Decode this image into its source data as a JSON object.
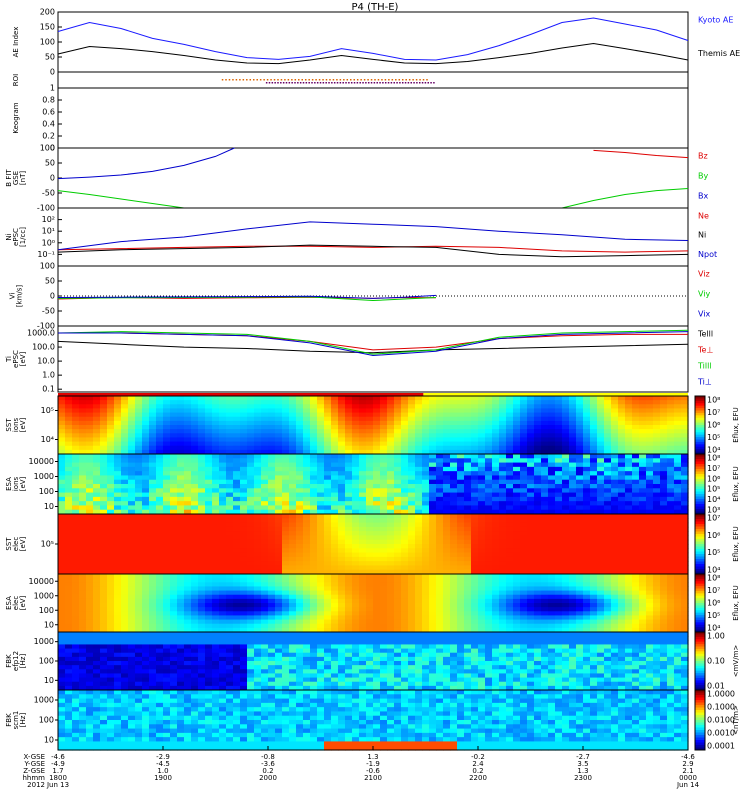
{
  "title": "P4 (TH-E)",
  "chart_data": [
    {
      "type": "line",
      "ylabel": "AE Index",
      "ylim": [
        0,
        200
      ],
      "yticks": [
        0,
        50,
        100,
        150,
        200
      ],
      "grid": false,
      "series": [
        {
          "name": "Kyoto AE",
          "color": "#1a1aff",
          "x": [
            0,
            0.05,
            0.1,
            0.15,
            0.2,
            0.25,
            0.3,
            0.35,
            0.4,
            0.45,
            0.5,
            0.55,
            0.6,
            0.65,
            0.7,
            0.75,
            0.8,
            0.85,
            0.9,
            0.95,
            1
          ],
          "values": [
            135,
            165,
            145,
            112,
            92,
            68,
            48,
            42,
            52,
            78,
            62,
            42,
            40,
            58,
            88,
            125,
            165,
            180,
            160,
            140,
            105
          ]
        },
        {
          "name": "Themis AE",
          "color": "#000000",
          "x": [
            0,
            0.05,
            0.1,
            0.15,
            0.2,
            0.25,
            0.3,
            0.35,
            0.4,
            0.45,
            0.5,
            0.55,
            0.6,
            0.65,
            0.7,
            0.75,
            0.8,
            0.85,
            0.9,
            0.95,
            1
          ],
          "values": [
            60,
            85,
            78,
            68,
            55,
            40,
            30,
            28,
            40,
            55,
            42,
            30,
            28,
            35,
            48,
            62,
            80,
            95,
            78,
            60,
            40
          ]
        }
      ]
    },
    {
      "type": "line",
      "ylabel": "ROI",
      "ylim": [
        0,
        1
      ]
    },
    {
      "type": "line",
      "ylabel": "Keogram",
      "ylim": [
        0,
        1
      ],
      "yticks": [
        0,
        0.2,
        0.4,
        0.6,
        0.8,
        1.0
      ]
    },
    {
      "type": "line",
      "ylabel": "B FIT\nGSE\n[nT]",
      "ylim": [
        -100,
        100
      ],
      "yticks": [
        -100,
        -50,
        0,
        50,
        100
      ],
      "series": [
        {
          "name": "Bz",
          "color": "#dd0000",
          "x": [
            0.85,
            0.9,
            0.95,
            1
          ],
          "values": [
            92,
            85,
            75,
            68
          ]
        },
        {
          "name": "By",
          "color": "#00cc00",
          "x": [
            0,
            0.05,
            0.1,
            0.15,
            0.2,
            0.8,
            0.85,
            0.9,
            0.95,
            1
          ],
          "values": [
            -42,
            -55,
            -70,
            -85,
            -100,
            -100,
            -75,
            -55,
            -42,
            -35
          ]
        },
        {
          "name": "Bx",
          "color": "#0000cc",
          "x": [
            0,
            0.05,
            0.1,
            0.15,
            0.2,
            0.25,
            0.28
          ],
          "values": [
            -2,
            3,
            10,
            22,
            42,
            72,
            100
          ]
        }
      ]
    },
    {
      "type": "line",
      "ylabel": "Ni\nePSC\n[1/cc]",
      "ylim": [
        -2,
        3
      ],
      "yticks": [
        -1,
        0,
        1,
        2
      ],
      "ytick_labels": [
        "10⁻¹",
        "10⁰",
        "10¹",
        "10²"
      ],
      "series": [
        {
          "name": "Ne",
          "color": "#dd0000",
          "x": [
            0,
            0.1,
            0.2,
            0.3,
            0.4,
            0.5,
            0.6,
            0.7,
            0.8,
            0.9,
            1
          ],
          "values": [
            -0.6,
            -0.5,
            -0.4,
            -0.3,
            -0.3,
            -0.4,
            -0.3,
            -0.4,
            -0.7,
            -0.8,
            -0.7
          ]
        },
        {
          "name": "Ni",
          "color": "#000000",
          "x": [
            0,
            0.1,
            0.2,
            0.3,
            0.4,
            0.5,
            0.6,
            0.7,
            0.8,
            0.9,
            1
          ],
          "values": [
            -0.8,
            -0.6,
            -0.5,
            -0.4,
            -0.2,
            -0.3,
            -0.4,
            -1.0,
            -1.2,
            -1.1,
            -1.0
          ]
        },
        {
          "name": "Npot",
          "color": "#0000cc",
          "x": [
            0,
            0.1,
            0.2,
            0.3,
            0.4,
            0.5,
            0.6,
            0.7,
            0.8,
            0.9,
            1
          ],
          "values": [
            -0.6,
            0.1,
            0.5,
            1.2,
            1.8,
            1.6,
            1.4,
            1.0,
            0.7,
            0.3,
            0.2
          ]
        }
      ]
    },
    {
      "type": "line",
      "ylabel": "Vi\n[km/s]",
      "ylim": [
        -100,
        100
      ],
      "yticks": [
        -100,
        -50,
        0,
        50,
        100
      ],
      "series": [
        {
          "name": "Viz",
          "color": "#dd0000",
          "x": [
            0,
            0.1,
            0.2,
            0.3,
            0.4,
            0.5,
            0.55,
            0.6
          ],
          "values": [
            -10,
            -5,
            -8,
            -6,
            -4,
            -8,
            -5,
            -6
          ]
        },
        {
          "name": "Viy",
          "color": "#00cc00",
          "x": [
            0,
            0.1,
            0.2,
            0.3,
            0.4,
            0.5,
            0.55,
            0.6
          ],
          "values": [
            -8,
            -6,
            -5,
            -4,
            -3,
            -15,
            -10,
            -5
          ]
        },
        {
          "name": "Vix",
          "color": "#0000cc",
          "x": [
            0,
            0.1,
            0.2,
            0.3,
            0.4,
            0.5,
            0.55,
            0.6
          ],
          "values": [
            -5,
            -4,
            -3,
            -2,
            -1,
            -8,
            -4,
            2
          ]
        }
      ]
    },
    {
      "type": "line",
      "ylabel": "Ti\nePSC\n[eV]",
      "ylim": [
        -1.2,
        3.5
      ],
      "yticks": [
        -1,
        0,
        1,
        2,
        3
      ],
      "ytick_labels": [
        "0.1",
        "1.0",
        "10.0",
        "100.0",
        "1000.0"
      ],
      "series": [
        {
          "name": "Telll",
          "color": "#000000",
          "x": [
            0,
            0.1,
            0.2,
            0.3,
            0.4,
            0.5,
            0.6,
            0.7,
            0.8,
            0.9,
            1
          ],
          "values": [
            2.4,
            2.2,
            2.0,
            1.9,
            1.7,
            1.6,
            1.8,
            1.9,
            2.0,
            2.1,
            2.2
          ]
        },
        {
          "name": "Te⊥",
          "color": "#dd0000",
          "x": [
            0,
            0.1,
            0.2,
            0.3,
            0.4,
            0.5,
            0.6,
            0.7,
            0.8,
            0.9,
            1
          ],
          "values": [
            3.0,
            3.0,
            2.9,
            2.8,
            2.4,
            1.8,
            2.0,
            2.6,
            2.8,
            2.9,
            2.9
          ]
        },
        {
          "name": "Tilll",
          "color": "#00cc00",
          "x": [
            0,
            0.1,
            0.2,
            0.3,
            0.4,
            0.5,
            0.6,
            0.7,
            0.8,
            0.9,
            1
          ],
          "values": [
            3.0,
            3.1,
            3.0,
            2.9,
            2.4,
            1.5,
            1.8,
            2.7,
            3.0,
            3.1,
            3.2
          ]
        },
        {
          "name": "Ti⊥",
          "color": "#0000cc",
          "x": [
            0,
            0.1,
            0.2,
            0.3,
            0.4,
            0.5,
            0.6,
            0.7,
            0.8,
            0.9,
            1
          ],
          "values": [
            3.0,
            3.0,
            2.9,
            2.8,
            2.3,
            1.4,
            1.7,
            2.6,
            2.9,
            3.0,
            3.1
          ]
        }
      ]
    },
    {
      "type": "heatmap",
      "ylabel": "SST\nions\n[eV]",
      "ytick_labels": [
        "10⁵",
        "10⁴"
      ],
      "colorbar_label": "Eflux, EFU",
      "colorbar_ticks": [
        "10⁸",
        "10⁷",
        "10⁶",
        "10⁵",
        "10⁴"
      ]
    },
    {
      "type": "heatmap",
      "ylabel": "ESA\nions\n[eV]",
      "ytick_labels": [
        "10000",
        "1000",
        "100",
        "10"
      ],
      "colorbar_label": "Eflux, EFU",
      "colorbar_ticks": [
        "10⁸",
        "10⁷",
        "10⁶",
        "10⁵",
        "10⁴",
        "10³"
      ]
    },
    {
      "type": "heatmap",
      "ylabel": "SST\nelec\n[eV]",
      "ytick_labels": [
        "10⁵"
      ],
      "colorbar_label": "Eflux, EFU",
      "colorbar_ticks": [
        "10⁷",
        "10⁶",
        "10⁵",
        "10⁴"
      ]
    },
    {
      "type": "heatmap",
      "ylabel": "ESA\nelec\n[eV]",
      "ytick_labels": [
        "10000",
        "1000",
        "100",
        "10"
      ],
      "colorbar_label": "Eflux, EFU",
      "colorbar_ticks": [
        "10⁸",
        "10⁷",
        "10⁶",
        "10⁵",
        "10⁴"
      ]
    },
    {
      "type": "heatmap",
      "ylabel": "FBK\nefp12\n[Hz]",
      "ytick_labels": [
        "1000",
        "100",
        "10"
      ],
      "colorbar_label": "<mV/m>",
      "colorbar_ticks": [
        "1.00",
        "0.10",
        "0.01"
      ]
    },
    {
      "type": "heatmap",
      "ylabel": "FBK\nscm1\n[Hz]",
      "ytick_labels": [
        "1000",
        "100",
        "10"
      ],
      "colorbar_label": "<nT/m>",
      "colorbar_ticks": [
        "1.0000",
        "0.1000",
        "0.0100",
        "0.0010",
        "0.0001"
      ]
    }
  ],
  "flags": {
    "roi_markers": "ROI",
    "mode_bar_colors": [
      "#dd0000",
      "#ffff00"
    ]
  },
  "x_axis": {
    "row_labels": [
      "X-GSE",
      "Y-GSE",
      "Z-GSE",
      "hhmm",
      "2012"
    ],
    "columns": [
      {
        "values": [
          "-4.6",
          "-4.9",
          "1.7",
          "1800",
          "Jun 13"
        ]
      },
      {
        "values": [
          "-2.9",
          "-4.5",
          "1.0",
          "1900",
          ""
        ]
      },
      {
        "values": [
          "-0.8",
          "-3.6",
          "0.2",
          "2000",
          ""
        ]
      },
      {
        "values": [
          "1.3",
          "-1.9",
          "-0.6",
          "2100",
          ""
        ]
      },
      {
        "values": [
          "-0.2",
          "2.4",
          "0.2",
          "2200",
          ""
        ]
      },
      {
        "values": [
          "-2.7",
          "3.5",
          "1.3",
          "2300",
          ""
        ]
      },
      {
        "values": [
          "-4.6",
          "2.9",
          "2.1",
          "0000",
          "Jun 14"
        ]
      }
    ]
  }
}
